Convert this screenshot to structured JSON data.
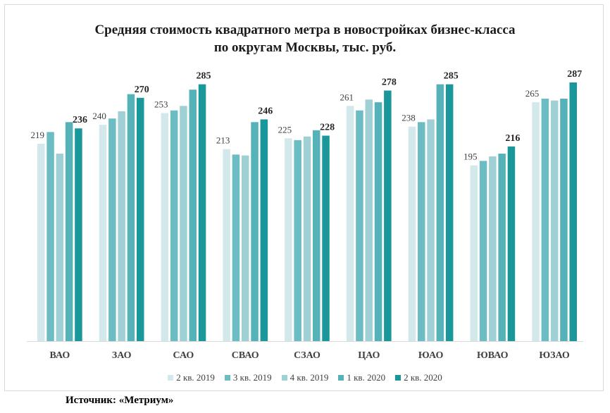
{
  "title_line1": "Средняя стоимость  квадратного  метра в новостройках  бизнес-класса",
  "title_line2": "по округам Москвы, тыс. руб.",
  "source": "Источник: «Метриум»",
  "chart_data": {
    "type": "bar",
    "title": "Средняя стоимость  квадратного  метра в новостройках  бизнес-класса по округам Москвы, тыс. руб.",
    "categories": [
      "ВАО",
      "ЗАО",
      "САО",
      "СВАО",
      "СЗАО",
      "ЦАО",
      "ЮАО",
      "ЮВАО",
      "ЮЗАО"
    ],
    "series": [
      {
        "name": "2 кв. 2019",
        "color": "#d3e8ea",
        "values": [
          219,
          240,
          253,
          213,
          225,
          261,
          238,
          195,
          265
        ]
      },
      {
        "name": "3 кв. 2019",
        "color": "#6bbcc3",
        "values": [
          232,
          247,
          256,
          207,
          223,
          256,
          243,
          200,
          269
        ]
      },
      {
        "name": "4 кв. 2019",
        "color": "#9fd0d5",
        "values": [
          208,
          255,
          261,
          206,
          227,
          268,
          246,
          205,
          267
        ]
      },
      {
        "name": "1 кв. 2020",
        "color": "#55b2b9",
        "values": [
          243,
          274,
          279,
          243,
          234,
          265,
          285,
          208,
          269
        ]
      },
      {
        "name": "2 кв. 2020",
        "color": "#1a979b",
        "values": [
          236,
          270,
          285,
          246,
          228,
          278,
          285,
          216,
          287
        ]
      }
    ],
    "data_labels_shown": [
      {
        "series": "2 кв. 2019",
        "bold": false
      },
      {
        "series": "2 кв. 2020",
        "bold": true
      }
    ],
    "ylim": [
      0,
      300
    ],
    "grid": false,
    "legend": "bottom"
  }
}
